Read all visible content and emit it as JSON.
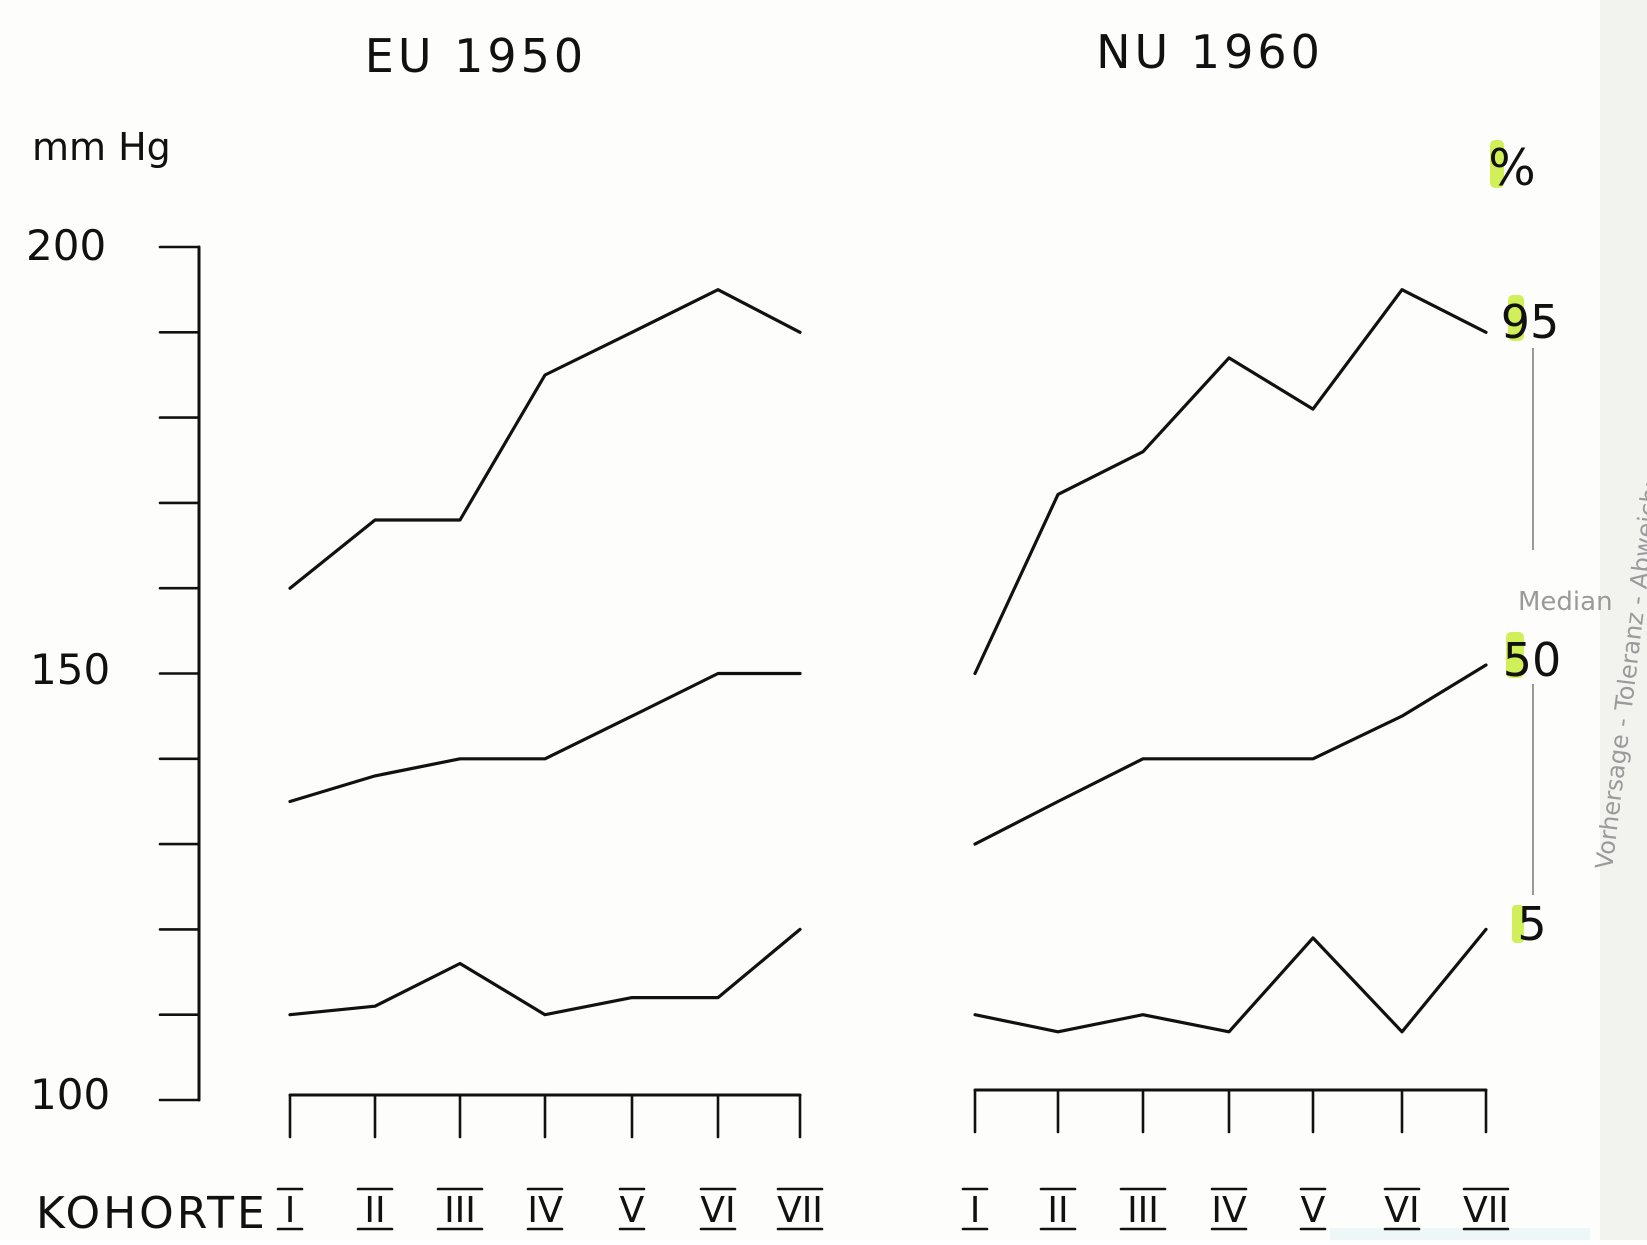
{
  "chart_data": {
    "type": "line",
    "unit_left": "mm Hg",
    "unit_right": "%",
    "y_ticks": [
      "200",
      "150",
      "100"
    ],
    "ylim": [
      100,
      200
    ],
    "xlabel": "KOHORTE",
    "categories": [
      "I",
      "II",
      "III",
      "IV",
      "V",
      "VI",
      "VII"
    ],
    "percentile_labels": [
      "95",
      "50",
      "5"
    ],
    "legend_pencil": "Median",
    "side_note_pencil": "Vorhersage - Toleranz - Abweichung",
    "colors": {
      "ink": "#111111",
      "highlight": "#c9ec3b",
      "pencil": "#9a9a9a"
    },
    "panels": [
      {
        "title": "EU 1950",
        "series": [
          {
            "name": "95",
            "values": [
              160,
              168,
              168,
              185,
              190,
              195,
              190
            ]
          },
          {
            "name": "50",
            "values": [
              135,
              138,
              140,
              140,
              145,
              150,
              150
            ]
          },
          {
            "name": "5",
            "values": [
              110,
              111,
              116,
              110,
              112,
              112,
              120
            ]
          }
        ]
      },
      {
        "title": "NU 1960",
        "series": [
          {
            "name": "95",
            "values": [
              150,
              171,
              176,
              187,
              181,
              195,
              190
            ]
          },
          {
            "name": "50",
            "values": [
              130,
              135,
              140,
              140,
              140,
              145,
              151
            ]
          },
          {
            "name": "5",
            "values": [
              110,
              108,
              110,
              108,
              119,
              108,
              120
            ]
          }
        ]
      }
    ]
  }
}
